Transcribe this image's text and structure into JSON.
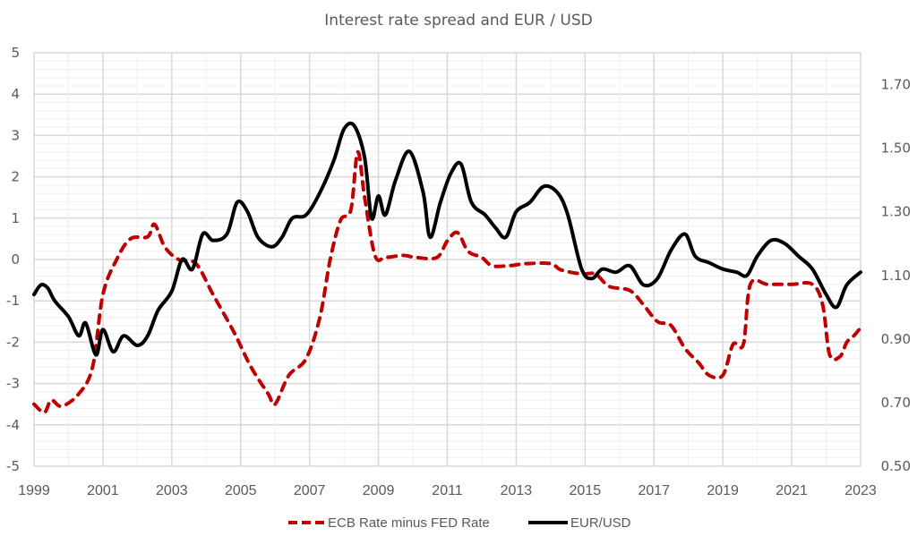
{
  "chart_data": {
    "type": "line",
    "title": "Interest rate spread and EUR / USD",
    "xlabel": "",
    "ylabel_left": "",
    "ylabel_right": "",
    "x_ticks": [
      "1999",
      "2001",
      "2003",
      "2005",
      "2007",
      "2009",
      "2011",
      "2013",
      "2015",
      "2017",
      "2019",
      "2021",
      "2023"
    ],
    "xlim": [
      1999,
      2023
    ],
    "y_left": {
      "range": [
        -5,
        5
      ],
      "ticks": [
        "5",
        "4",
        "3",
        "2",
        "1",
        "0",
        "-1",
        "-2",
        "-3",
        "-4",
        "-5"
      ],
      "tick_values": [
        5,
        4,
        3,
        2,
        1,
        0,
        -1,
        -2,
        -3,
        -4,
        -5
      ]
    },
    "y_right": {
      "range": [
        0.5,
        1.8
      ],
      "ticks": [
        "1.70",
        "1.50",
        "1.30",
        "1.10",
        "0.90",
        "0.70",
        "0.50"
      ],
      "tick_values": [
        1.7,
        1.5,
        1.3,
        1.1,
        0.9,
        0.7,
        0.5
      ]
    },
    "grid": true,
    "legend_position": "bottom",
    "colors": {
      "spread": "#C00000",
      "eurusd": "#000000",
      "grid_major": "#D9D9D9",
      "grid_minor": "#F0F0F0",
      "text": "#595959"
    },
    "series": [
      {
        "name": "ECB Rate minus FED Rate",
        "axis": "left",
        "style": "dashed",
        "x": [
          1999.0,
          1999.3,
          1999.5,
          1999.8,
          2000.3,
          2000.7,
          2001.0,
          2001.4,
          2001.8,
          2002.3,
          2002.5,
          2002.8,
          2003.2,
          2003.7,
          2004.2,
          2004.8,
          2005.3,
          2005.8,
          2006.0,
          2006.4,
          2006.9,
          2007.3,
          2007.6,
          2007.9,
          2008.2,
          2008.4,
          2008.6,
          2008.9,
          2009.2,
          2009.7,
          2010.1,
          2010.7,
          2011.0,
          2011.3,
          2011.6,
          2012.0,
          2012.3,
          2012.8,
          2013.3,
          2014.0,
          2014.3,
          2014.9,
          2015.3,
          2015.7,
          2016.3,
          2016.7,
          2017.1,
          2017.5,
          2017.9,
          2018.3,
          2018.6,
          2019.0,
          2019.3,
          2019.6,
          2019.8,
          2020.3,
          2021.0,
          2021.6,
          2021.9,
          2022.1,
          2022.4,
          2022.6,
          2022.8,
          2023.0
        ],
        "values": [
          -3.5,
          -3.7,
          -3.4,
          -3.55,
          -3.25,
          -2.6,
          -0.85,
          0.0,
          0.5,
          0.55,
          0.85,
          0.3,
          0.0,
          -0.1,
          -0.85,
          -1.75,
          -2.6,
          -3.25,
          -3.5,
          -2.8,
          -2.4,
          -1.4,
          0.0,
          0.95,
          1.2,
          2.6,
          1.5,
          0.1,
          0.05,
          0.1,
          0.05,
          0.05,
          0.45,
          0.65,
          0.2,
          0.05,
          -0.15,
          -0.15,
          -0.1,
          -0.1,
          -0.25,
          -0.35,
          -0.35,
          -0.65,
          -0.75,
          -1.1,
          -1.5,
          -1.6,
          -2.15,
          -2.5,
          -2.8,
          -2.8,
          -2.05,
          -2.05,
          -0.6,
          -0.6,
          -0.6,
          -0.6,
          -1.1,
          -2.3,
          -2.35,
          -2.0,
          -1.85,
          -1.65
        ]
      },
      {
        "name": "EUR/USD",
        "axis": "right",
        "style": "solid",
        "x": [
          1999.0,
          1999.2,
          1999.4,
          1999.6,
          2000.0,
          2000.3,
          2000.5,
          2000.8,
          2001.0,
          2001.3,
          2001.6,
          2002.0,
          2002.3,
          2002.6,
          2003.0,
          2003.3,
          2003.6,
          2003.9,
          2004.2,
          2004.6,
          2004.9,
          2005.2,
          2005.5,
          2005.9,
          2006.2,
          2006.5,
          2006.9,
          2007.3,
          2007.7,
          2008.0,
          2008.3,
          2008.6,
          2008.8,
          2009.0,
          2009.2,
          2009.5,
          2009.9,
          2010.3,
          2010.5,
          2010.8,
          2011.1,
          2011.4,
          2011.7,
          2012.1,
          2012.4,
          2012.7,
          2013.0,
          2013.4,
          2013.8,
          2014.2,
          2014.5,
          2014.9,
          2015.2,
          2015.5,
          2015.9,
          2016.3,
          2016.7,
          2017.1,
          2017.5,
          2017.9,
          2018.2,
          2018.6,
          2019.0,
          2019.4,
          2019.7,
          2020.0,
          2020.4,
          2020.8,
          2021.2,
          2021.6,
          2022.0,
          2022.3,
          2022.6,
          2023.0
        ],
        "values": [
          1.04,
          1.07,
          1.06,
          1.02,
          0.97,
          0.91,
          0.95,
          0.85,
          0.93,
          0.86,
          0.91,
          0.88,
          0.91,
          0.99,
          1.05,
          1.15,
          1.12,
          1.23,
          1.21,
          1.23,
          1.33,
          1.3,
          1.22,
          1.19,
          1.22,
          1.28,
          1.29,
          1.36,
          1.46,
          1.56,
          1.57,
          1.47,
          1.28,
          1.35,
          1.29,
          1.4,
          1.49,
          1.36,
          1.22,
          1.33,
          1.42,
          1.45,
          1.33,
          1.29,
          1.25,
          1.22,
          1.3,
          1.33,
          1.38,
          1.36,
          1.29,
          1.12,
          1.09,
          1.12,
          1.11,
          1.13,
          1.07,
          1.09,
          1.18,
          1.23,
          1.16,
          1.14,
          1.12,
          1.11,
          1.1,
          1.16,
          1.21,
          1.2,
          1.16,
          1.12,
          1.04,
          1.0,
          1.07,
          1.11
        ]
      }
    ]
  }
}
